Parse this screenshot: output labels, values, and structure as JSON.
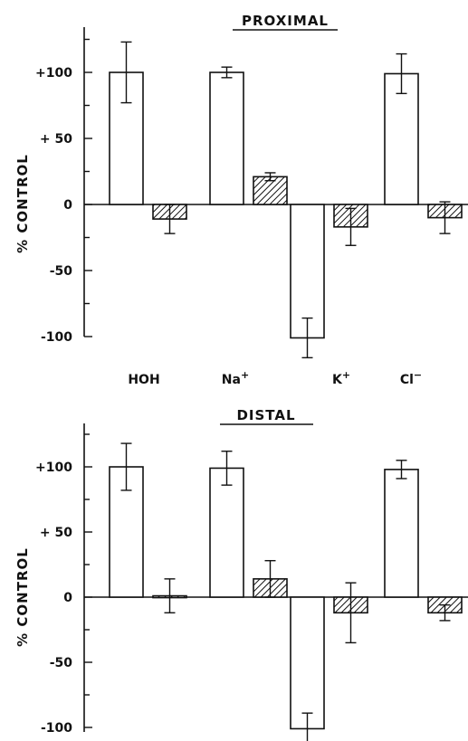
{
  "chart_data": [
    {
      "type": "bar",
      "title": "PROXIMAL",
      "ylabel": "% CONTROL",
      "ylim": [
        -120,
        130
      ],
      "yticks": [
        {
          "value": 100,
          "label": "+100"
        },
        {
          "value": 50,
          "label": "+ 50"
        },
        {
          "value": 0,
          "label": "0"
        },
        {
          "value": -50,
          "label": "-50"
        },
        {
          "value": -100,
          "label": "-100"
        }
      ],
      "categories": [
        "HOH",
        "Na+",
        "K+",
        "Cl−"
      ],
      "series": [
        {
          "style": "open",
          "values": [
            100,
            100,
            -101,
            99
          ],
          "errors": [
            23,
            4,
            15,
            15
          ]
        },
        {
          "style": "hatched",
          "values": [
            -11,
            21,
            -17,
            -10
          ],
          "errors": [
            11,
            3,
            14,
            12
          ]
        }
      ],
      "grid": false
    },
    {
      "type": "bar",
      "title": "DISTAL",
      "ylabel": "% CONTROL",
      "ylim": [
        -120,
        130
      ],
      "yticks": [
        {
          "value": 100,
          "label": "+100"
        },
        {
          "value": 50,
          "label": "+ 50"
        },
        {
          "value": 0,
          "label": "0"
        },
        {
          "value": -50,
          "label": "-50"
        },
        {
          "value": -100,
          "label": "-100"
        }
      ],
      "categories": [
        "HOH",
        "Na+",
        "K+",
        "Cl−"
      ],
      "series": [
        {
          "style": "open",
          "values": [
            100,
            99,
            -101,
            98
          ],
          "errors": [
            18,
            13,
            12,
            7
          ]
        },
        {
          "style": "hatched",
          "values": [
            1,
            14,
            -12,
            -12
          ],
          "errors": [
            13,
            14,
            23,
            6
          ]
        }
      ],
      "grid": false
    }
  ],
  "category_labels": [
    {
      "base": "HOH",
      "sup": ""
    },
    {
      "base": "Na",
      "sup": "+"
    },
    {
      "base": "K",
      "sup": "+"
    },
    {
      "base": "Cl",
      "sup": "−"
    }
  ],
  "colors": {
    "ink": "#111111",
    "open_fill": "#ffffff"
  }
}
